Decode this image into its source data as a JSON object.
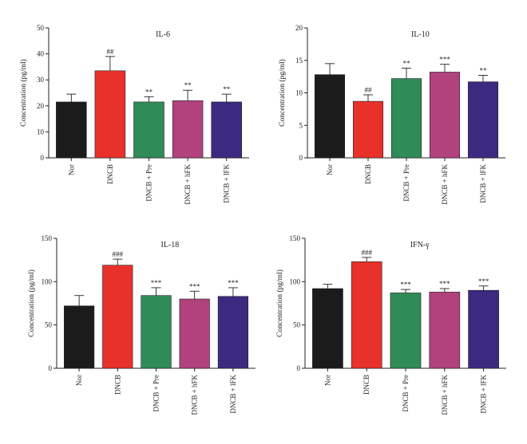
{
  "chart_data": [
    {
      "type": "bar",
      "title": "IL-6",
      "ylabel": "Concentration (pg/ml)",
      "ylim": [
        0,
        50
      ],
      "yticks": [
        0,
        10,
        20,
        30,
        40,
        50
      ],
      "categories": [
        "Nor",
        "DNCB",
        "DNCB + Pre",
        "DNCB + hFK",
        "DNCB + lFK"
      ],
      "values": [
        21.5,
        33.5,
        21.5,
        22.0,
        21.5
      ],
      "errors": [
        3.0,
        5.5,
        2.0,
        4.0,
        3.0
      ],
      "annotations": [
        "",
        "##",
        "**",
        "**",
        "**"
      ],
      "colors": [
        "#1b1b1b",
        "#e8312a",
        "#2f8b57",
        "#b2427e",
        "#3b2a80"
      ]
    },
    {
      "type": "bar",
      "title": "IL-10",
      "ylabel": "Concentration (pg/ml)",
      "ylim": [
        0,
        20
      ],
      "yticks": [
        0,
        5,
        10,
        15,
        20
      ],
      "categories": [
        "Nor",
        "DNCB",
        "DNCB + Pre",
        "DNCB + hFK",
        "DNCB + lFK"
      ],
      "values": [
        12.8,
        8.7,
        12.2,
        13.2,
        11.7
      ],
      "errors": [
        1.7,
        1.0,
        1.6,
        1.2,
        1.0
      ],
      "annotations": [
        "",
        "##",
        "**",
        "***",
        "**"
      ],
      "colors": [
        "#1b1b1b",
        "#e8312a",
        "#2f8b57",
        "#b2427e",
        "#3b2a80"
      ]
    },
    {
      "type": "bar",
      "title": "IL-18",
      "ylabel": "Concentration (pg/ml)",
      "ylim": [
        0,
        150
      ],
      "yticks": [
        0,
        50,
        100,
        150
      ],
      "categories": [
        "Nor",
        "DNCB",
        "DNCB + Pre",
        "DNCB + hFK",
        "DNCB + lFK"
      ],
      "values": [
        72,
        119,
        84,
        80,
        83
      ],
      "errors": [
        12,
        7,
        9,
        9,
        10
      ],
      "annotations": [
        "",
        "###",
        "***",
        "***",
        "***"
      ],
      "colors": [
        "#1b1b1b",
        "#e8312a",
        "#2f8b57",
        "#b2427e",
        "#3b2a80"
      ]
    },
    {
      "type": "bar",
      "title": "IFN-γ",
      "ylabel": "Concentration (pg/ml)",
      "ylim": [
        0,
        150
      ],
      "yticks": [
        0,
        50,
        100,
        150
      ],
      "categories": [
        "Nor",
        "DNCB",
        "DNCB + Pre",
        "DNCB + hFK",
        "DNCB + lFK"
      ],
      "values": [
        92,
        123,
        87,
        88,
        90
      ],
      "errors": [
        5,
        5,
        4,
        4,
        5
      ],
      "annotations": [
        "",
        "###",
        "***",
        "***",
        "***"
      ],
      "colors": [
        "#1b1b1b",
        "#e8312a",
        "#2f8b57",
        "#b2427e",
        "#3b2a80"
      ]
    }
  ]
}
